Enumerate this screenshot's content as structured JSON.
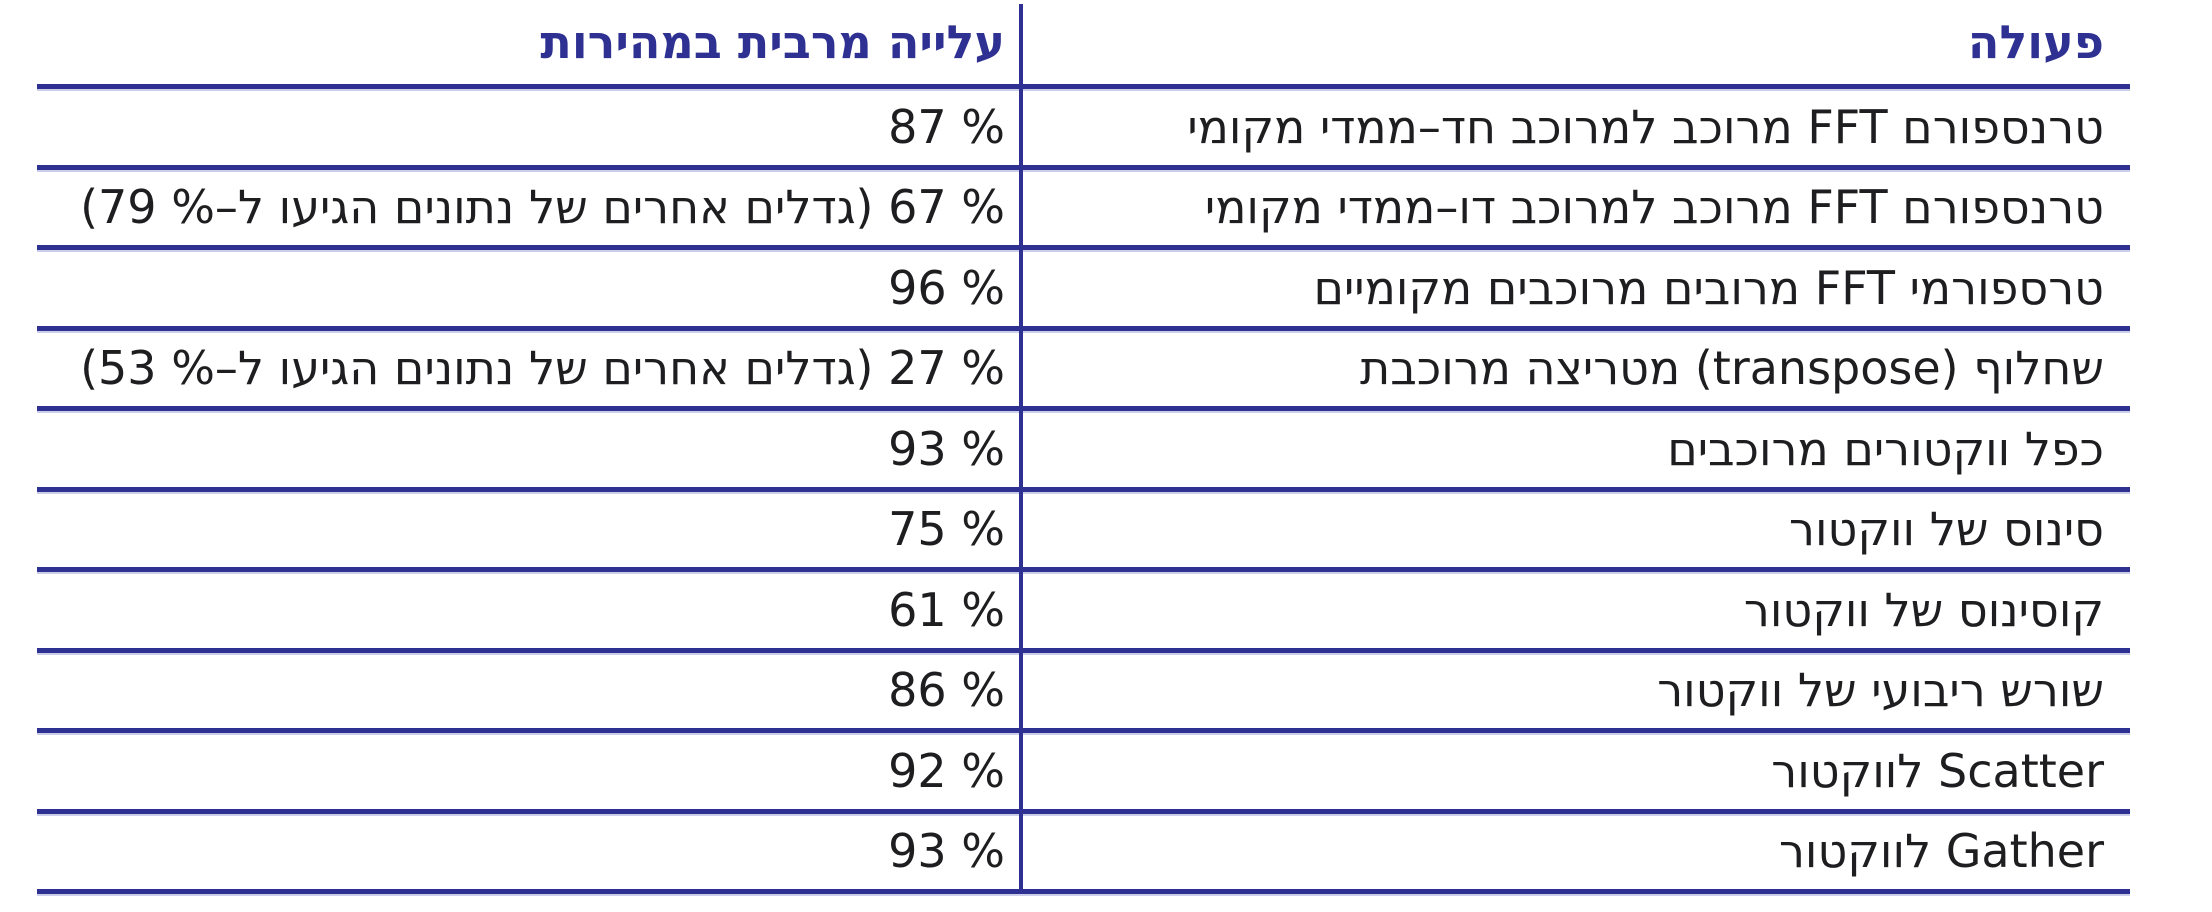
{
  "table": {
    "header": {
      "operation": "פעולה",
      "speedup": "עלייה מרבית במהירות"
    },
    "rows": [
      {
        "operation": "טרנספורם FFT מרוכב למרוכב חד–ממדי מקומי",
        "speedup": "% 87"
      },
      {
        "operation": "טרנספורם FFT מרוכב למרוכב דו–ממדי מקומי",
        "speedup": "% 67 (גדלים אחרים של נתונים הגיעו ל–% 79)"
      },
      {
        "operation": "טרספורמי FFT מרובים מרוכבים מקומיים",
        "speedup": "% 96"
      },
      {
        "operation": "שחלוף (transpose) מטריצה מרוכבת",
        "speedup": "% 27 (גדלים אחרים של נתונים הגיעו ל–% 53)"
      },
      {
        "operation": "כפל ווקטורים מרוכבים",
        "speedup": "% 93"
      },
      {
        "operation": "סינוס של ווקטור",
        "speedup": "% 75"
      },
      {
        "operation": "קוסינוס של ווקטור",
        "speedup": "% 61"
      },
      {
        "operation": "שורש ריבועי של ווקטור",
        "speedup": "% 86"
      },
      {
        "operation": "Scatter לווקטור",
        "speedup": "% 92"
      },
      {
        "operation": "Gather לווקטור",
        "speedup": "% 93"
      }
    ],
    "colors": {
      "accent": "#2E3192",
      "line": "#2E3192",
      "line_shadow": "#cbcde9",
      "body_text": "#1e1e21"
    }
  }
}
